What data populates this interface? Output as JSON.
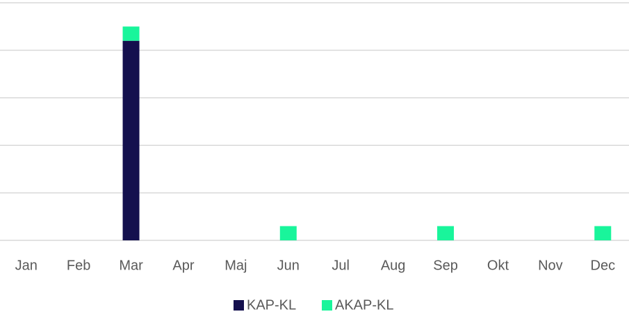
{
  "chart_data": {
    "type": "stacked_bar",
    "categories": [
      "Jan",
      "Feb",
      "Mar",
      "Apr",
      "Maj",
      "Jun",
      "Jul",
      "Aug",
      "Sep",
      "Okt",
      "Nov",
      "Dec"
    ],
    "series": [
      {
        "name": "KAP-KL",
        "color": "#14104e",
        "values": [
          0,
          0,
          4.2,
          0,
          0,
          0,
          0,
          0,
          0,
          0,
          0,
          0
        ]
      },
      {
        "name": "AKAP-KL",
        "color": "#19f59b",
        "values": [
          0,
          0,
          0.3,
          0,
          0,
          0.3,
          0,
          0,
          0.3,
          0,
          0,
          0.3
        ]
      }
    ],
    "ylim": [
      0,
      5
    ],
    "yticks": [
      0,
      1,
      2,
      3,
      4,
      5
    ],
    "grid": true,
    "legend": "bottom"
  }
}
